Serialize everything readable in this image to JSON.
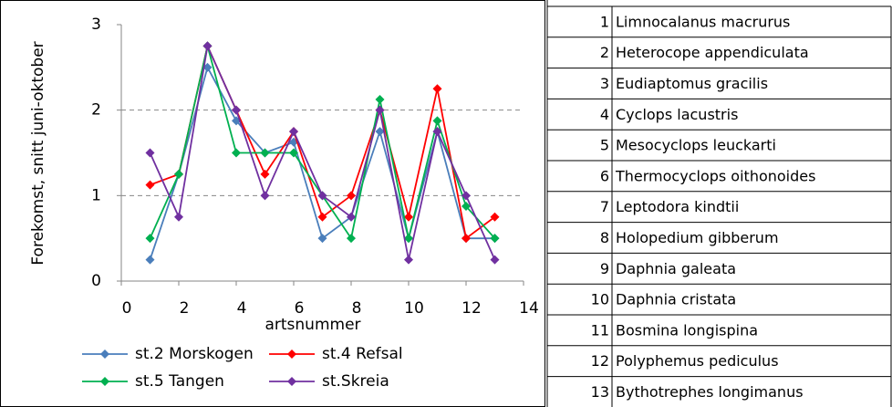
{
  "chart_data": {
    "type": "line",
    "x": [
      1,
      2,
      3,
      4,
      5,
      6,
      7,
      8,
      9,
      10,
      11,
      12,
      13
    ],
    "x_label": "artsnummer",
    "y_label": "Forekomst, snitt  juni-oktober",
    "xlim": [
      0,
      14
    ],
    "xticks": [
      0,
      2,
      4,
      6,
      8,
      10,
      12,
      14
    ],
    "ylim": [
      0,
      3
    ],
    "yticks": [
      0,
      1,
      2,
      3
    ],
    "grid": true,
    "legend": "bottom",
    "series": [
      {
        "name": "st.2 Morskogen",
        "color": "#4a7ebb",
        "values": [
          0.25,
          1.25,
          2.5,
          1.875,
          1.5,
          1.625,
          0.5,
          0.75,
          1.75,
          0.5,
          1.75,
          0.5,
          0.5
        ]
      },
      {
        "name": "st.4 Refsal",
        "color": "#ff0000",
        "values": [
          1.125,
          1.25,
          2.75,
          2.0,
          1.25,
          1.75,
          0.75,
          1.0,
          2.0,
          0.75,
          2.25,
          0.5,
          0.75
        ]
      },
      {
        "name": "st.5 Tangen",
        "color": "#00b050",
        "values": [
          0.5,
          1.25,
          2.75,
          1.5,
          1.5,
          1.5,
          1.0,
          0.5,
          2.125,
          0.5,
          1.875,
          0.875,
          0.5
        ]
      },
      {
        "name": "st.Skreia",
        "color": "#7030a0",
        "values": [
          1.5,
          0.75,
          2.75,
          2.0,
          1.0,
          1.75,
          1.0,
          0.75,
          2.0,
          0.25,
          1.75,
          1.0,
          0.25
        ]
      }
    ]
  },
  "table": {
    "rows": [
      [
        1,
        "Limnocalanus macrurus"
      ],
      [
        2,
        "Heterocope appendiculata"
      ],
      [
        3,
        "Eudiaptomus gracilis"
      ],
      [
        4,
        "Cyclops lacustris"
      ],
      [
        5,
        "Mesocyclops leuckarti"
      ],
      [
        6,
        "Thermocyclops oithonoides"
      ],
      [
        7,
        "Leptodora kindtii"
      ],
      [
        8,
        "Holopedium gibberum"
      ],
      [
        9,
        "Daphnia galeata"
      ],
      [
        10,
        "Daphnia cristata"
      ],
      [
        11,
        "Bosmina longispina"
      ],
      [
        12,
        "Polyphemus pediculus"
      ],
      [
        13,
        "Bythotrephes longimanus"
      ]
    ]
  }
}
